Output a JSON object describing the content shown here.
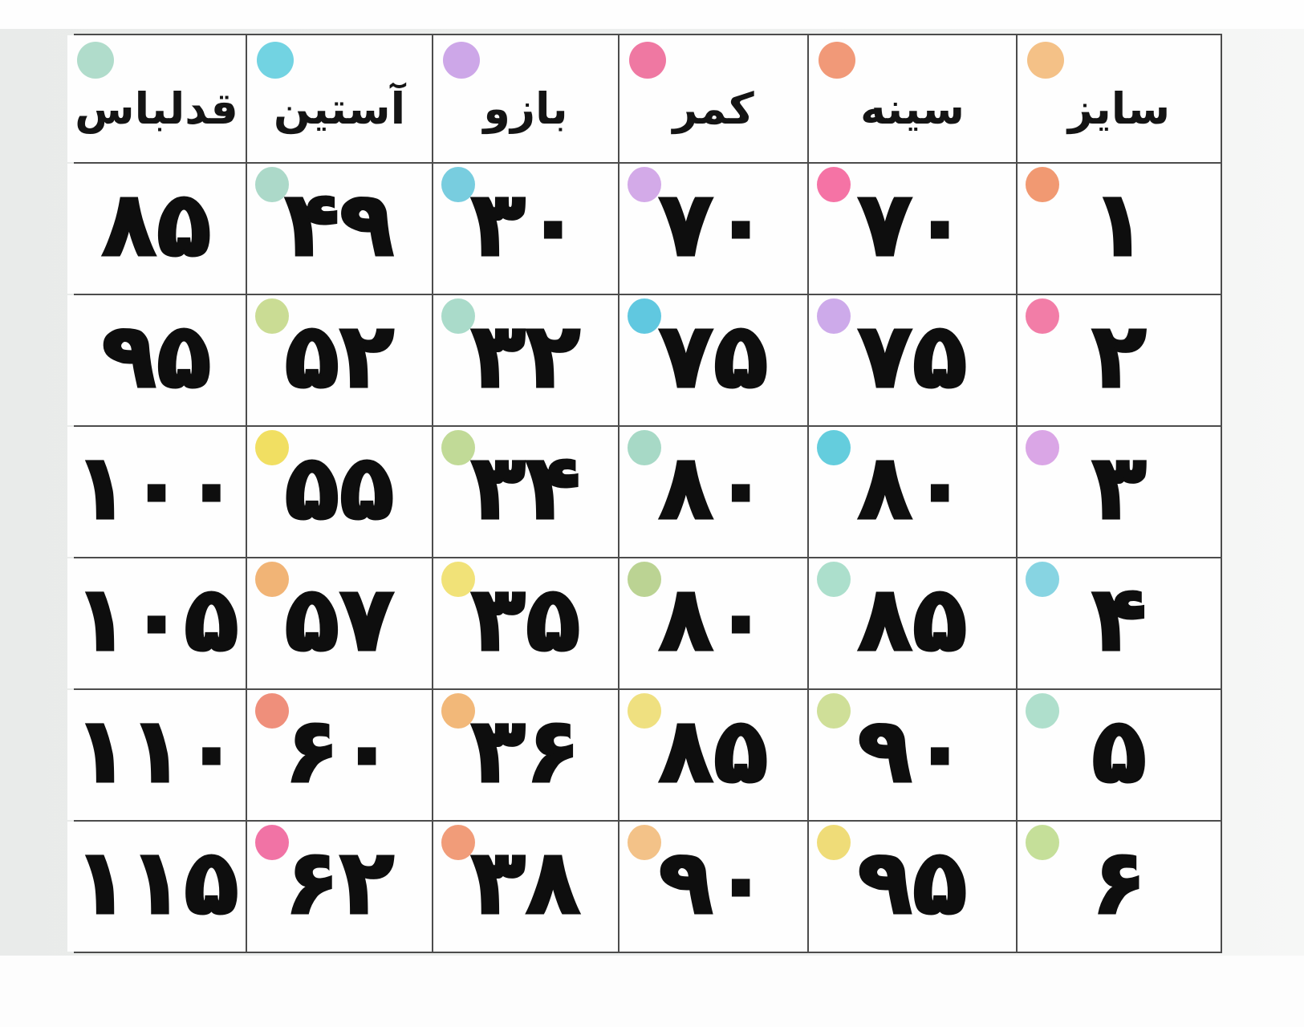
{
  "table": {
    "columns": [
      {
        "key": "size",
        "label": "سایز",
        "dot_color": "#f3bc7d"
      },
      {
        "key": "chest",
        "label": "سینه",
        "dot_color": "#f0906c"
      },
      {
        "key": "waist",
        "label": "کمر",
        "dot_color": "#ee6d9a"
      },
      {
        "key": "arm",
        "label": "بازو",
        "dot_color": "#c9a0e6"
      },
      {
        "key": "sleeve",
        "label": "آستین",
        "dot_color": "#66cfdf"
      },
      {
        "key": "length",
        "label": "قدلباس",
        "dot_color": "#a9d9c7"
      }
    ],
    "rows": [
      {
        "cells": [
          {
            "value": "۱",
            "dot_color": "#f09066"
          },
          {
            "value": "۷۰",
            "dot_color": "#f4679d"
          },
          {
            "value": "۷۰",
            "dot_color": "#cfa3e6"
          },
          {
            "value": "۳۰",
            "dot_color": "#6cc9dc"
          },
          {
            "value": "۴۹",
            "dot_color": "#a5d6c4"
          },
          {
            "value": "۸۵",
            "dot_color": null
          }
        ]
      },
      {
        "cells": [
          {
            "value": "۲",
            "dot_color": "#f1729f"
          },
          {
            "value": "۷۵",
            "dot_color": "#c9a3e8"
          },
          {
            "value": "۷۵",
            "dot_color": "#52c3dd"
          },
          {
            "value": "۳۲",
            "dot_color": "#a3d8c6"
          },
          {
            "value": "۵۲",
            "dot_color": "#c6d98b"
          },
          {
            "value": "۹۵",
            "dot_color": null
          }
        ]
      },
      {
        "cells": [
          {
            "value": "۳",
            "dot_color": "#d79ee4"
          },
          {
            "value": "۸۰",
            "dot_color": "#57c9da"
          },
          {
            "value": "۸۰",
            "dot_color": "#9fd6c1"
          },
          {
            "value": "۳۴",
            "dot_color": "#bcd78e"
          },
          {
            "value": "۵۵",
            "dot_color": "#f0dc55"
          },
          {
            "value": "۱۰۰",
            "dot_color": null
          }
        ]
      },
      {
        "cells": [
          {
            "value": "۴",
            "dot_color": "#7dd0e0"
          },
          {
            "value": "۸۵",
            "dot_color": "#a5dcc8"
          },
          {
            "value": "۸۰",
            "dot_color": "#b5cf8a"
          },
          {
            "value": "۳۵",
            "dot_color": "#f0e06d"
          },
          {
            "value": "۵۷",
            "dot_color": "#f0ae6a"
          },
          {
            "value": "۱۰۵",
            "dot_color": null
          }
        ]
      },
      {
        "cells": [
          {
            "value": "۵",
            "dot_color": "#a8dcc8"
          },
          {
            "value": "۹۰",
            "dot_color": "#cbdc8f"
          },
          {
            "value": "۸۵",
            "dot_color": "#eedd75"
          },
          {
            "value": "۳۶",
            "dot_color": "#f1b26e"
          },
          {
            "value": "۶۰",
            "dot_color": "#ee8570"
          },
          {
            "value": "۱۱۰",
            "dot_color": null
          }
        ]
      },
      {
        "cells": [
          {
            "value": "۶",
            "dot_color": "#c0dc90"
          },
          {
            "value": "۹۵",
            "dot_color": "#eed96d"
          },
          {
            "value": "۹۰",
            "dot_color": "#f2bd7e"
          },
          {
            "value": "۳۸",
            "dot_color": "#f0946e"
          },
          {
            "value": "۶۲",
            "dot_color": "#f0679d"
          },
          {
            "value": "۱۱۵",
            "dot_color": null
          }
        ]
      }
    ]
  }
}
